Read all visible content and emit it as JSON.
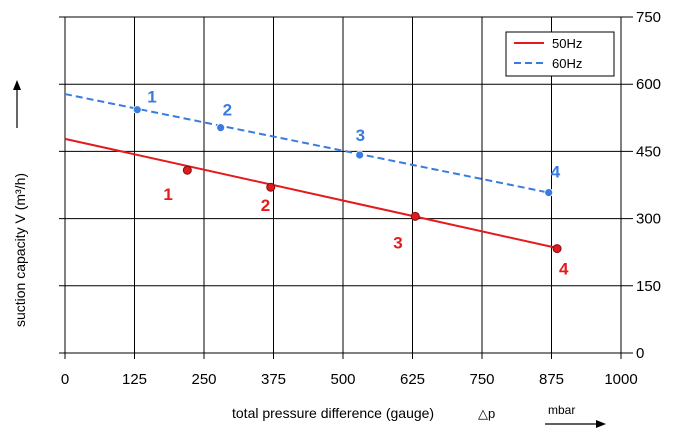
{
  "chart_data": {
    "type": "line",
    "xlabel": "total pressure difference (gauge)",
    "xlabel_symbol": "△p",
    "xunit": "mbar",
    "ylabel": "suction capacity V (m³/h)",
    "xlim": [
      0,
      1000
    ],
    "ylim": [
      0,
      750
    ],
    "x_ticks": [
      "0",
      "125",
      "250",
      "375",
      "500",
      "625",
      "750",
      "875",
      "1000"
    ],
    "y_ticks": [
      "0",
      "150",
      "300",
      "450",
      "600",
      "750"
    ],
    "grid": true,
    "legend_position": "top-right",
    "series": [
      {
        "name": "50Hz",
        "color": "#e41a1c",
        "style": "solid",
        "line": [
          [
            0,
            478
          ],
          [
            890,
            233
          ]
        ],
        "points": [
          {
            "label": "1",
            "x": 220,
            "y": 408
          },
          {
            "label": "2",
            "x": 370,
            "y": 370
          },
          {
            "label": "3",
            "x": 630,
            "y": 305
          },
          {
            "label": "4",
            "x": 885,
            "y": 233
          }
        ]
      },
      {
        "name": "60Hz",
        "color": "#3a7be0",
        "style": "dashed",
        "line": [
          [
            0,
            578
          ],
          [
            870,
            358
          ]
        ],
        "points": [
          {
            "label": "1",
            "x": 130,
            "y": 543
          },
          {
            "label": "2",
            "x": 280,
            "y": 503
          },
          {
            "label": "3",
            "x": 530,
            "y": 442
          },
          {
            "label": "4",
            "x": 870,
            "y": 358
          }
        ]
      }
    ]
  }
}
